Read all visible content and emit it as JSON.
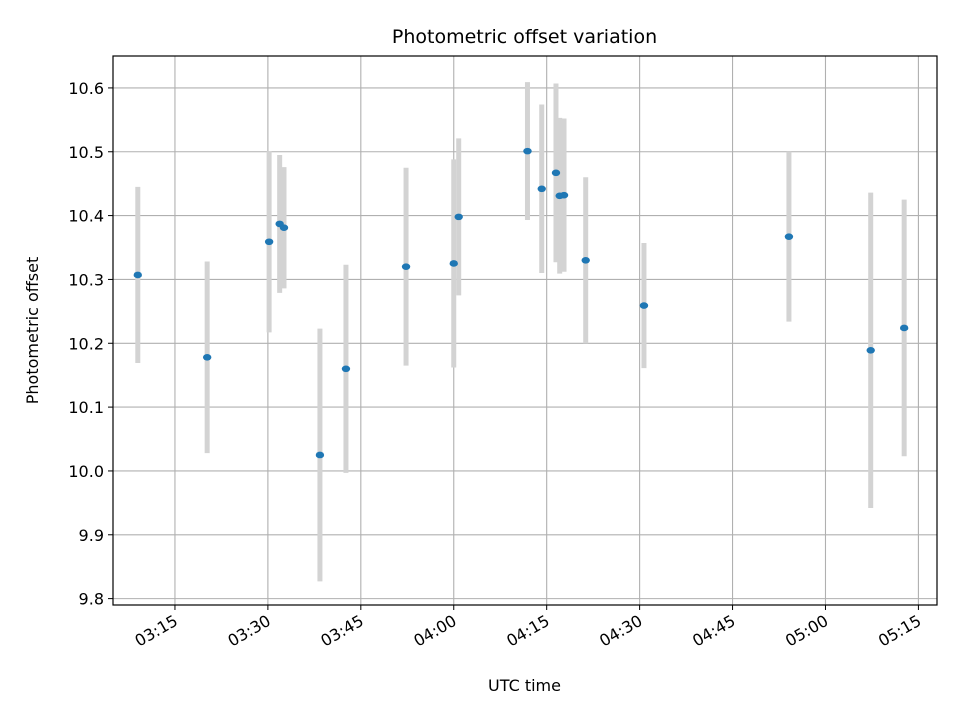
{
  "chart_data": {
    "type": "scatter",
    "title": "Photometric offset variation",
    "xlabel": "UTC time",
    "ylabel": "Photometric offset",
    "x_kind": "time",
    "xlim": [
      "03:05",
      "05:18"
    ],
    "ylim": [
      9.79,
      10.65
    ],
    "x_ticks": [
      "03:15",
      "03:30",
      "03:45",
      "04:00",
      "04:15",
      "04:30",
      "04:45",
      "05:00",
      "05:15"
    ],
    "y_ticks": [
      9.8,
      9.9,
      10.0,
      10.1,
      10.2,
      10.3,
      10.4,
      10.5,
      10.6
    ],
    "y_tick_labels": [
      "9.8",
      "9.9",
      "10.0",
      "10.1",
      "10.2",
      "10.3",
      "10.4",
      "10.5",
      "10.6"
    ],
    "grid": true,
    "marker_color": "#1f77b4",
    "errorbar_color": "#d3d3d3",
    "points": [
      {
        "t": "03:09:00",
        "y": 10.307,
        "err": 0.138
      },
      {
        "t": "03:20:12",
        "y": 10.178,
        "err": 0.15
      },
      {
        "t": "03:30:12",
        "y": 10.359,
        "err": 0.142
      },
      {
        "t": "03:31:54",
        "y": 10.387,
        "err": 0.108
      },
      {
        "t": "03:32:36",
        "y": 10.381,
        "err": 0.095
      },
      {
        "t": "03:38:24",
        "y": 10.025,
        "err": 0.198
      },
      {
        "t": "03:42:36",
        "y": 10.16,
        "err": 0.163
      },
      {
        "t": "03:52:18",
        "y": 10.32,
        "err": 0.155
      },
      {
        "t": "04:00:00",
        "y": 10.325,
        "err": 0.163
      },
      {
        "t": "04:00:48",
        "y": 10.398,
        "err": 0.123
      },
      {
        "t": "04:11:54",
        "y": 10.501,
        "err": 0.108
      },
      {
        "t": "04:14:12",
        "y": 10.442,
        "err": 0.132
      },
      {
        "t": "04:16:30",
        "y": 10.467,
        "err": 0.14
      },
      {
        "t": "04:17:06",
        "y": 10.431,
        "err": 0.122
      },
      {
        "t": "04:17:48",
        "y": 10.432,
        "err": 0.12
      },
      {
        "t": "04:21:18",
        "y": 10.33,
        "err": 0.13
      },
      {
        "t": "04:30:42",
        "y": 10.259,
        "err": 0.098
      },
      {
        "t": "04:54:06",
        "y": 10.367,
        "err": 0.133
      },
      {
        "t": "05:07:18",
        "y": 10.189,
        "err": 0.247
      },
      {
        "t": "05:12:42",
        "y": 10.224,
        "err": 0.201
      }
    ]
  }
}
